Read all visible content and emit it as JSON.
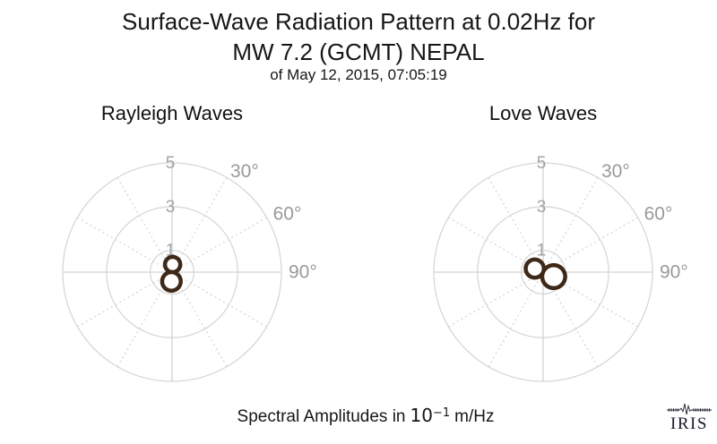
{
  "header": {
    "title_line1": "Surface-Wave Radiation Pattern at 0.02Hz for",
    "title_line2": "MW 7.2 (GCMT) NEPAL",
    "subtitle": "of May 12, 2015, 07:05:19"
  },
  "caption": {
    "prefix": "Spectral Amplitudes in",
    "magnitude_base": "10",
    "magnitude_exponent": "−1",
    "suffix": "m/Hz"
  },
  "logo": {
    "text": "IRIS"
  },
  "colors": {
    "pattern": "#3e2817",
    "grid": "#d7d7d7",
    "axis": "#d3d3d3",
    "radial_tick_label": "#a3a3a3",
    "angle_label": "#999999",
    "title_text": "#161616",
    "logo": "#1a1a2e",
    "background": "#ffffff"
  },
  "chart_data": [
    {
      "type": "polar",
      "title": "Rayleigh Waves",
      "amplitude_units": "10^−1 m/Hz",
      "r_max": 5,
      "radial_ticks": [
        1,
        3,
        5
      ],
      "angle_tick_labels": [
        {
          "angle_deg": 30,
          "label": "30°"
        },
        {
          "angle_deg": 60,
          "label": "60°"
        },
        {
          "angle_deg": 90,
          "label": "90°"
        }
      ],
      "solid_spokes_deg": [
        0,
        90,
        180,
        270
      ],
      "dotted_spokes_deg": [
        30,
        60,
        120,
        150,
        210,
        240,
        300,
        330
      ],
      "pattern_model": "r(theta) = max over lobes of amplitude * max(0, cos(theta - azimuth))",
      "lobes": [
        {
          "azimuth_deg": 4,
          "amplitude": 0.7
        },
        {
          "azimuth_deg": 184,
          "amplitude": 0.85
        }
      ]
    },
    {
      "type": "polar",
      "title": "Love Waves",
      "amplitude_units": "10^−1 m/Hz",
      "r_max": 5,
      "radial_ticks": [
        1,
        3,
        5
      ],
      "angle_tick_labels": [
        {
          "angle_deg": 30,
          "label": "30°"
        },
        {
          "angle_deg": 60,
          "label": "60°"
        },
        {
          "angle_deg": 90,
          "label": "90°"
        }
      ],
      "solid_spokes_deg": [
        0,
        90,
        180,
        270
      ],
      "dotted_spokes_deg": [
        30,
        60,
        120,
        150,
        210,
        240,
        300,
        330
      ],
      "pattern_model": "r(theta) = max over lobes of amplitude * max(0, cos(theta - azimuth))",
      "lobes": [
        {
          "azimuth_deg": 293,
          "amplitude": 0.83
        },
        {
          "azimuth_deg": 113,
          "amplitude": 1.05
        }
      ]
    }
  ]
}
